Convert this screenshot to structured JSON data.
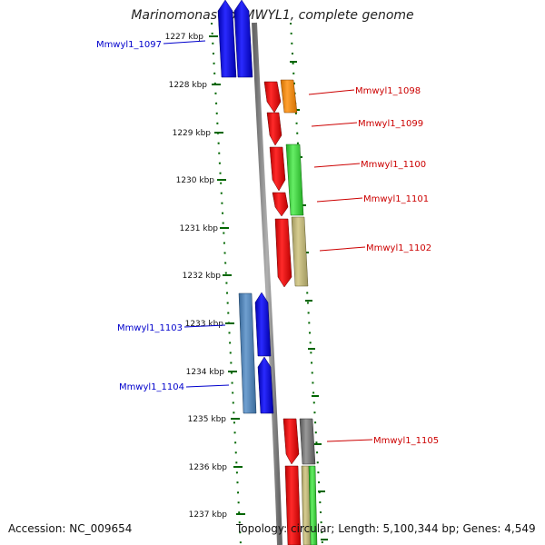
{
  "title": "Marinomonas sp. MWYL1, complete genome",
  "footer": {
    "accession": "Accession: NC_009654",
    "topology": "Topology: circular; Length: 5,100,344 bp; Genes: 4,549"
  },
  "ticks": [
    "1227 kbp",
    "1228 kbp",
    "1229 kbp",
    "1230 kbp",
    "1231 kbp",
    "1232 kbp",
    "1233 kbp",
    "1234 kbp",
    "1235 kbp",
    "1236 kbp",
    "1237 kbp"
  ],
  "genes": [
    {
      "label": "Mmwyl1_1097",
      "strand": "reverse"
    },
    {
      "label": "Mmwyl1_1098",
      "strand": "forward"
    },
    {
      "label": "Mmwyl1_1099",
      "strand": "forward"
    },
    {
      "label": "Mmwyl1_1100",
      "strand": "forward"
    },
    {
      "label": "Mmwyl1_1101",
      "strand": "forward"
    },
    {
      "label": "Mmwyl1_1102",
      "strand": "forward"
    },
    {
      "label": "Mmwyl1_1103",
      "strand": "reverse"
    },
    {
      "label": "Mmwyl1_1104",
      "strand": "reverse"
    },
    {
      "label": "Mmwyl1_1105",
      "strand": "forward"
    }
  ],
  "colors": {
    "reverse_label": "#0000cc",
    "forward_label": "#cc0000",
    "tick": "#006600",
    "backbone": "#888888"
  }
}
